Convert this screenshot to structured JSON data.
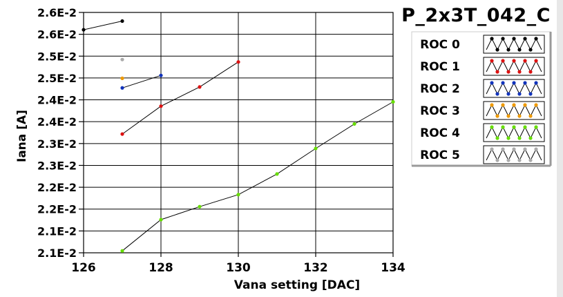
{
  "chart_data": {
    "type": "line",
    "title": "P_2x3T_042_C",
    "xlabel": "Vana setting [DAC]",
    "ylabel": "Iana [A]",
    "xlim": [
      126,
      134
    ],
    "ylim": [
      0.021,
      0.026
    ],
    "x_ticks": [
      "126",
      "128",
      "130",
      "132",
      "134"
    ],
    "y_ticks": [
      "2.1E-2",
      "2.1E-2",
      "2.2E-2",
      "2.2E-2",
      "2.3E-2",
      "2.3E-2",
      "2.4E-2",
      "2.4E-2",
      "2.5E-2",
      "2.5E-2",
      "2.6E-2",
      "2.6E-2"
    ],
    "grid": true,
    "legend_position": "right",
    "series": [
      {
        "name": "ROC 0",
        "color": "#000000",
        "x": [
          126,
          127
        ],
        "y": [
          0.02564,
          0.02582
        ]
      },
      {
        "name": "ROC 1",
        "color": "#dd1111",
        "x": [
          127,
          128,
          129,
          130
        ],
        "y": [
          0.02347,
          0.02405,
          0.02445,
          0.02497
        ]
      },
      {
        "name": "ROC 2",
        "color": "#1133bb",
        "x": [
          127,
          128
        ],
        "y": [
          0.02443,
          0.02469
        ]
      },
      {
        "name": "ROC 3",
        "color": "#ee9900",
        "x": [
          127
        ],
        "y": [
          0.02463
        ]
      },
      {
        "name": "ROC 4",
        "color": "#66dd00",
        "x": [
          127,
          128,
          129,
          130,
          131,
          132,
          133,
          134
        ],
        "y": [
          0.02104,
          0.02169,
          0.02196,
          0.02221,
          0.02264,
          0.02317,
          0.02368,
          0.02414
        ]
      },
      {
        "name": "ROC 5",
        "color": "#aaaaaa",
        "x": [
          127
        ],
        "y": [
          0.02502
        ]
      }
    ]
  }
}
